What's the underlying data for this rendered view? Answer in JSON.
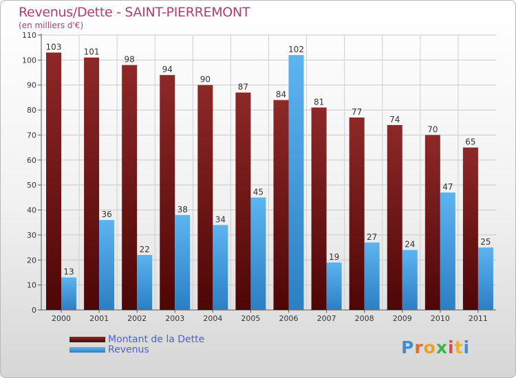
{
  "chart_data": {
    "type": "bar",
    "title": "Revenus/Dette - SAINT-PIERREMONT",
    "subtitle": "(en milliers d'€)",
    "categories": [
      "2000",
      "2001",
      "2002",
      "2003",
      "2004",
      "2005",
      "2006",
      "2007",
      "2008",
      "2009",
      "2010",
      "2011"
    ],
    "series": [
      {
        "name": "Montant de la Dette",
        "color": "#7a1616",
        "values": [
          103,
          101,
          98,
          94,
          90,
          87,
          84,
          81,
          77,
          74,
          70,
          65
        ]
      },
      {
        "name": "Revenus",
        "color": "#4aa3e6",
        "values": [
          13,
          36,
          22,
          38,
          34,
          45,
          102,
          19,
          27,
          24,
          47,
          25
        ]
      }
    ],
    "ylim": [
      0,
      110
    ],
    "yticks": [
      0,
      10,
      20,
      30,
      40,
      50,
      60,
      70,
      80,
      90,
      100,
      110
    ],
    "xlabel": "",
    "ylabel": "",
    "grid": true,
    "legend_position": "bottom-left"
  },
  "logo": {
    "letters": [
      "P",
      "r",
      "o",
      "x",
      "i",
      "t",
      "i"
    ],
    "colors": [
      "#3b8fd8",
      "#e06a2a",
      "#f0a020",
      "#3bb54a",
      "#e04848",
      "#f0b020",
      "#3b8fd8"
    ]
  }
}
